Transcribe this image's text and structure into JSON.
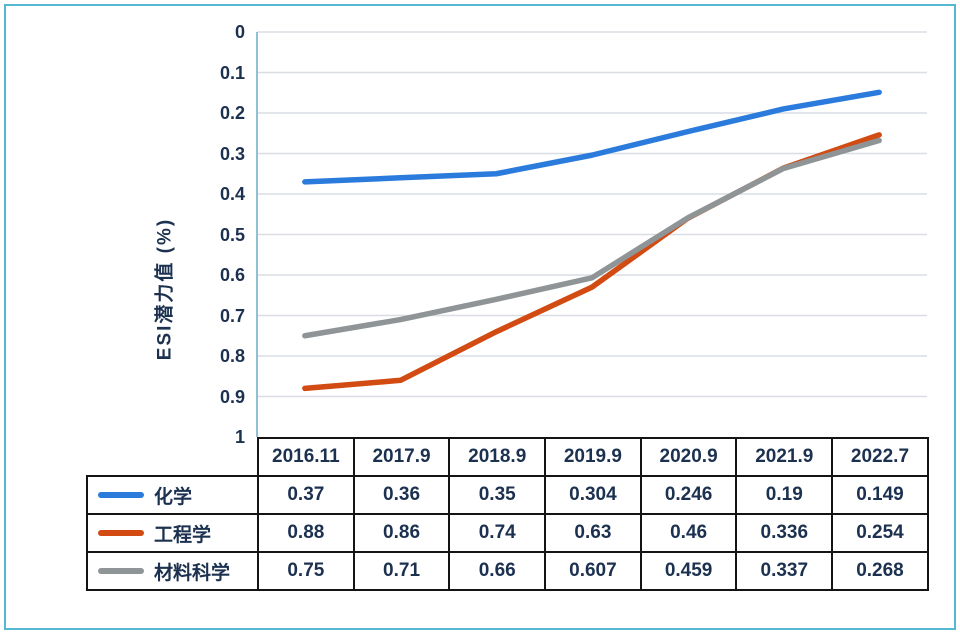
{
  "chart": {
    "y_axis_title": "ESI潜力值 (%)",
    "y_ticks": [
      "0",
      "0.1",
      "0.2",
      "0.3",
      "0.4",
      "0.5",
      "0.6",
      "0.7",
      "0.8",
      "0.9",
      "1"
    ]
  },
  "chart_data": {
    "type": "line",
    "categories": [
      "2016.11",
      "2017.9",
      "2018.9",
      "2019.9",
      "2020.9",
      "2021.9",
      "2022.7"
    ],
    "series": [
      {
        "name": "化学",
        "color": "#2b7bdd",
        "values": [
          0.37,
          0.36,
          0.35,
          0.304,
          0.246,
          0.19,
          0.149
        ]
      },
      {
        "name": "工程学",
        "color": "#d14b12",
        "values": [
          0.88,
          0.86,
          0.74,
          0.63,
          0.46,
          0.336,
          0.254
        ]
      },
      {
        "name": "材料科学",
        "color": "#8f9596",
        "values": [
          0.75,
          0.71,
          0.66,
          0.607,
          0.459,
          0.337,
          0.268
        ]
      }
    ],
    "title": "",
    "xlabel": "",
    "ylabel": "ESI潜力值 (%)",
    "ylim": [
      0,
      1
    ],
    "y_axis_inverted": true,
    "grid": true,
    "legend_position": "table-left-column"
  },
  "table": {
    "header": [
      "2016.11",
      "2017.9",
      "2018.9",
      "2019.9",
      "2020.9",
      "2021.9",
      "2022.7"
    ],
    "rows": [
      {
        "label": "化学",
        "values": [
          "0.37",
          "0.36",
          "0.35",
          "0.304",
          "0.246",
          "0.19",
          "0.149"
        ]
      },
      {
        "label": "工程学",
        "values": [
          "0.88",
          "0.86",
          "0.74",
          "0.63",
          "0.46",
          "0.336",
          "0.254"
        ]
      },
      {
        "label": "材料科学",
        "values": [
          "0.75",
          "0.71",
          "0.66",
          "0.607",
          "0.459",
          "0.337",
          "0.268"
        ]
      }
    ]
  },
  "colors": {
    "frame_border": "#56b7d2",
    "gridline": "#d9dee3",
    "axis_line": "#8fc0d6",
    "text": "#1c3150",
    "table_border": "#141414"
  }
}
